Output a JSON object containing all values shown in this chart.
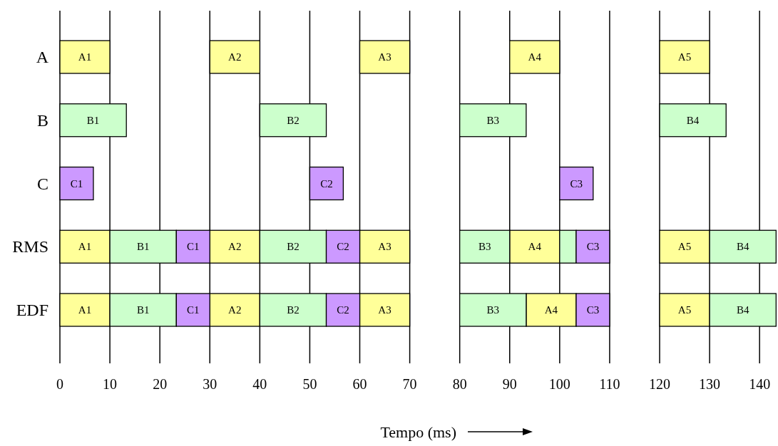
{
  "chart_data": {
    "type": "bar",
    "orientation": "horizontal",
    "xlabel": "Tempo (ms)",
    "categories": [
      "A",
      "B",
      "C",
      "RMS",
      "EDF"
    ],
    "xlim": [
      0,
      143.4
    ],
    "xticks": [
      0,
      10,
      20,
      30,
      40,
      50,
      60,
      70,
      80,
      90,
      100,
      110,
      120,
      130,
      140
    ],
    "grid": "x",
    "series": [
      {
        "color": "#ffff99",
        "values": [
          10,
          null,
          null,
          10,
          10
        ],
        "base": [
          0,
          null,
          null,
          0,
          0
        ],
        "value_labels": [
          "A1",
          null,
          null,
          "A1",
          "A1"
        ]
      },
      {
        "color": "#ffff99",
        "values": [
          10,
          null,
          null,
          10,
          10
        ],
        "base": [
          30,
          null,
          null,
          30,
          30
        ],
        "value_labels": [
          "A2",
          null,
          null,
          "A2",
          "A2"
        ]
      },
      {
        "color": "#ffff99",
        "values": [
          10,
          null,
          null,
          10,
          10
        ],
        "base": [
          60,
          null,
          null,
          60,
          60
        ],
        "value_labels": [
          "A3",
          null,
          null,
          "A3",
          "A3"
        ]
      },
      {
        "color": "#ffff99",
        "values": [
          10,
          null,
          null,
          10,
          10
        ],
        "base": [
          90,
          null,
          null,
          90,
          93.3
        ],
        "value_labels": [
          "A4",
          null,
          null,
          "A4",
          "A4"
        ]
      },
      {
        "color": "#ffff99",
        "values": [
          10,
          null,
          null,
          10,
          10
        ],
        "base": [
          120,
          null,
          null,
          120,
          120
        ],
        "value_labels": [
          "A5",
          null,
          null,
          "A5",
          "A5"
        ]
      },
      {
        "color": "#ccffcc",
        "values": [
          null,
          13.3,
          null,
          13.3,
          13.3
        ],
        "base": [
          null,
          0,
          null,
          10,
          10
        ],
        "value_labels": [
          null,
          "B1",
          null,
          "B1",
          "B1"
        ]
      },
      {
        "color": "#ccffcc",
        "values": [
          null,
          13.3,
          null,
          13.3,
          13.3
        ],
        "base": [
          null,
          40,
          null,
          40,
          40
        ],
        "value_labels": [
          null,
          "B2",
          null,
          "B2",
          "B2"
        ]
      },
      {
        "color": "#ccffcc",
        "values": [
          null,
          13.3,
          null,
          10,
          13.3
        ],
        "base": [
          null,
          80,
          null,
          80,
          80
        ],
        "value_labels": [
          null,
          "B3",
          null,
          "B3",
          "B3"
        ]
      },
      {
        "color": "#ccffcc",
        "values": [
          null,
          null,
          null,
          3.3,
          null
        ],
        "base": [
          null,
          null,
          null,
          100,
          null
        ]
      },
      {
        "color": "#ccffcc",
        "values": [
          null,
          13.3,
          null,
          13.3,
          13.3
        ],
        "base": [
          null,
          120,
          null,
          130,
          130
        ],
        "value_labels": [
          null,
          "B4",
          null,
          "B4",
          "B4"
        ]
      },
      {
        "color": "#cc99ff",
        "values": [
          null,
          null,
          6.7,
          6.7,
          6.7
        ],
        "base": [
          null,
          null,
          0,
          23.3,
          23.3
        ],
        "value_labels": [
          null,
          null,
          "C1",
          "C1",
          "C1"
        ]
      },
      {
        "color": "#cc99ff",
        "values": [
          null,
          null,
          6.7,
          6.7,
          6.7
        ],
        "base": [
          null,
          null,
          50,
          53.3,
          53.3
        ],
        "value_labels": [
          null,
          null,
          "C2",
          "C2",
          "C2"
        ]
      },
      {
        "color": "#cc99ff",
        "values": [
          null,
          null,
          6.7,
          6.7,
          6.7
        ],
        "base": [
          null,
          null,
          100,
          103.3,
          103.3
        ],
        "value_labels": [
          null,
          null,
          "C3",
          "C3",
          "C3"
        ]
      }
    ]
  }
}
